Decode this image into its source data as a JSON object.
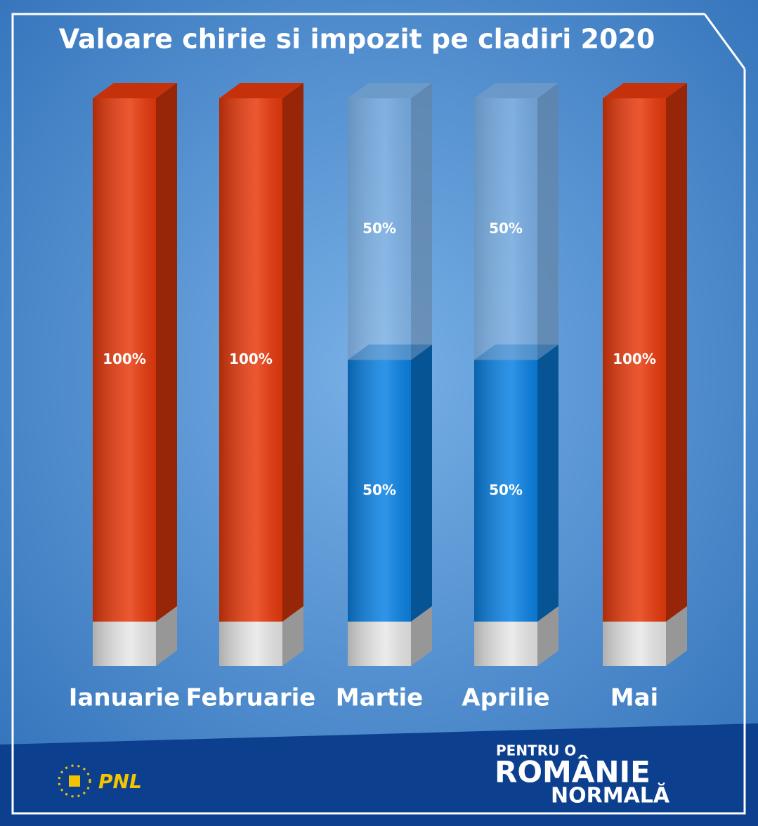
{
  "chart_data": {
    "type": "bar3d",
    "title": "Valoare chirie si impozit pe cladiri 2020",
    "categories": [
      "Ianuarie",
      "Februarie",
      "Martie",
      "Aprilie",
      "Mai"
    ],
    "ylim": [
      0,
      100
    ],
    "stacked": true,
    "series": [
      {
        "color": "#e83a0c",
        "values": [
          100,
          100,
          null,
          null,
          100
        ],
        "value_labels": [
          "100%",
          "100%",
          null,
          null,
          "100%"
        ]
      },
      {
        "color": "#0b82e4",
        "values": [
          null,
          null,
          50,
          50,
          null
        ],
        "value_labels": [
          null,
          null,
          "50%",
          "50%",
          null
        ]
      },
      {
        "color": "#8fbce8",
        "values": [
          null,
          null,
          50,
          50,
          null
        ],
        "value_labels": [
          null,
          null,
          "50%",
          "50%",
          null
        ]
      }
    ]
  },
  "footer": {
    "party": "PNL",
    "slogan_top": "PENTRU O",
    "slogan_middle": "ROMÂNIE",
    "slogan_bottom": "NORMALĂ"
  }
}
